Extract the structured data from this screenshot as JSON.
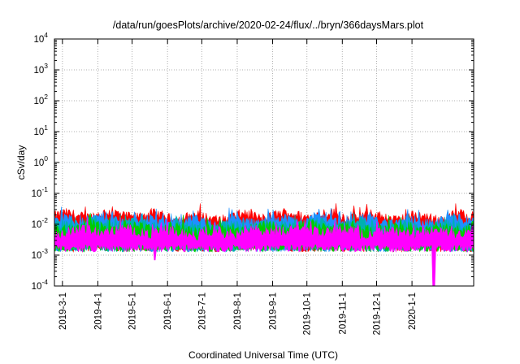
{
  "chart_data": {
    "type": "area",
    "title": "/data/run/goesPlots/archive/2020-02-24/flux/../bryn/366daysMars.plot",
    "xlabel": "Coordinated Universal Time (UTC)",
    "ylabel": "cSv/day",
    "yscale": "log",
    "ylim": [
      0.0001,
      10000
    ],
    "xlim": [
      "2019-02-22",
      "2020-02-24"
    ],
    "grid": true,
    "y_ticks": [
      {
        "base": "10",
        "exp": "-4",
        "value": 0.0001
      },
      {
        "base": "10",
        "exp": "-3",
        "value": 0.001
      },
      {
        "base": "10",
        "exp": "-2",
        "value": 0.01
      },
      {
        "base": "10",
        "exp": "-1",
        "value": 0.1
      },
      {
        "base": "10",
        "exp": "0",
        "value": 1
      },
      {
        "base": "10",
        "exp": "1",
        "value": 10
      },
      {
        "base": "10",
        "exp": "2",
        "value": 100
      },
      {
        "base": "10",
        "exp": "3",
        "value": 1000
      },
      {
        "base": "10",
        "exp": "4",
        "value": 10000
      }
    ],
    "x_ticks": [
      {
        "label": "2019-3-1",
        "date": "2019-03-01"
      },
      {
        "label": "2019-4-1",
        "date": "2019-04-01"
      },
      {
        "label": "2019-5-1",
        "date": "2019-05-01"
      },
      {
        "label": "2019-6-1",
        "date": "2019-06-01"
      },
      {
        "label": "2019-7-1",
        "date": "2019-07-01"
      },
      {
        "label": "2019-8-1",
        "date": "2019-08-01"
      },
      {
        "label": "2019-9-1",
        "date": "2019-09-01"
      },
      {
        "label": "2019-10-1",
        "date": "2019-10-01"
      },
      {
        "label": "2019-11-1",
        "date": "2019-11-01"
      },
      {
        "label": "2019-12-1",
        "date": "2019-12-01"
      },
      {
        "label": "2020-1-1",
        "date": "2020-01-01"
      }
    ],
    "series": [
      {
        "color": "#ff0000",
        "level": 0.018
      },
      {
        "color": "#1e90ff",
        "level": 0.013
      },
      {
        "color": "#00b0b0",
        "level": 0.009
      },
      {
        "color": "#00cc00",
        "level": 0.0075
      },
      {
        "color": "#ff00ff",
        "level": 0.0055
      }
    ]
  }
}
